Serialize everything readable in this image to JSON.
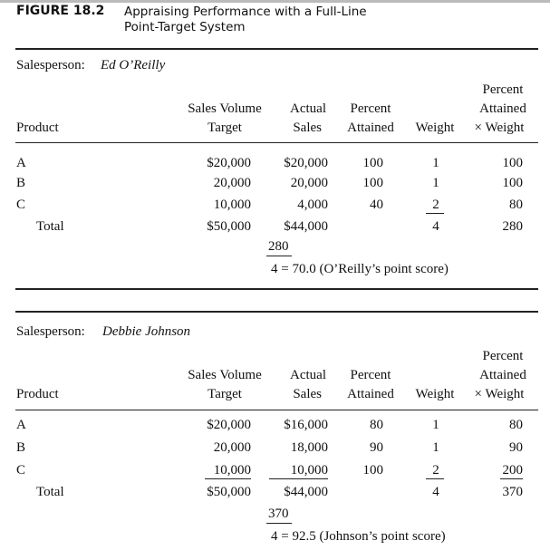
{
  "figure": {
    "label": "FIGURE 18.2",
    "title_line1": "Appraising Performance with a Full-Line",
    "title_line2": "Point-Target System"
  },
  "headers": {
    "product": "Product",
    "target": [
      "Sales Volume",
      "Target"
    ],
    "actual": [
      "Actual",
      "Sales"
    ],
    "percent": [
      "Percent",
      "Attained"
    ],
    "weight": "Weight",
    "pxw": [
      "Percent",
      "Attained",
      "× Weight"
    ]
  },
  "sections": [
    {
      "label": "Salesperson:",
      "name": "Ed O’Reilly",
      "rows": [
        {
          "product": "A",
          "target": "$20,000",
          "actual": "$20,000",
          "percent": "100",
          "weight": "1",
          "pxw": "100"
        },
        {
          "product": "B",
          "target": "20,000",
          "actual": "20,000",
          "percent": "100",
          "weight": "1",
          "pxw": "100"
        },
        {
          "product": "C",
          "target": "10,000",
          "actual": "4,000",
          "percent": "40",
          "weight": "2",
          "pxw": "80"
        }
      ],
      "total": {
        "label": "Total",
        "target": "$50,000",
        "actual": "$44,000",
        "weight": "4",
        "pxw": "280"
      },
      "score": {
        "numerator": "280",
        "rest": "4  = 70.0 (O’Reilly’s point score)"
      }
    },
    {
      "label": "Salesperson:",
      "name": "Debbie Johnson",
      "rows": [
        {
          "product": "A",
          "target": "$20,000",
          "actual": "$16,000",
          "percent": "80",
          "weight": "1",
          "pxw": "80"
        },
        {
          "product": "B",
          "target": "20,000",
          "actual": "18,000",
          "percent": "90",
          "weight": "1",
          "pxw": "90"
        },
        {
          "product": "C",
          "target": "10,000",
          "actual": "10,000",
          "percent": "100",
          "weight": "2",
          "pxw": "200"
        }
      ],
      "total": {
        "label": "Total",
        "target": "$50,000",
        "actual": "$44,000",
        "weight": "4",
        "pxw": "370"
      },
      "score": {
        "numerator": "370",
        "rest": "4  = 92.5 (Johnson’s point score)"
      }
    }
  ]
}
